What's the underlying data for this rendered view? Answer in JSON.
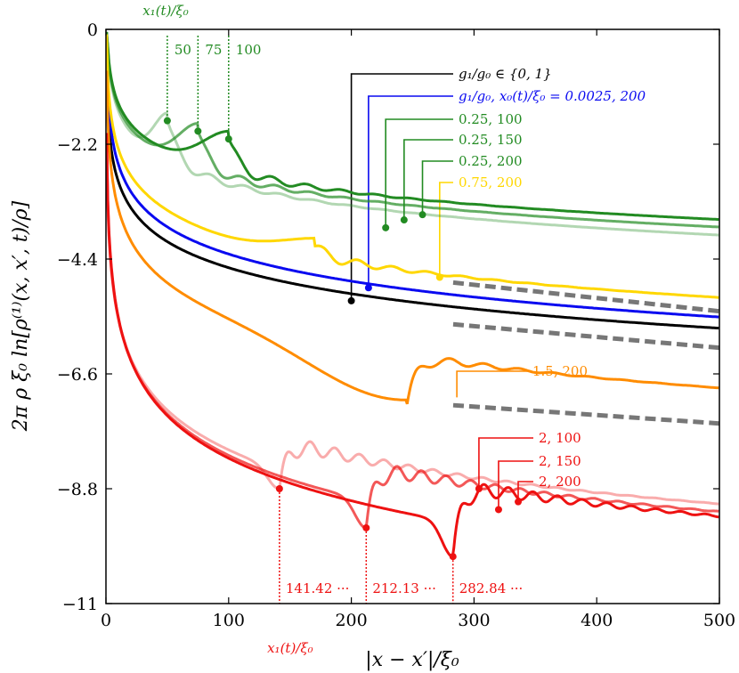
{
  "chart_data": {
    "type": "line",
    "xlabel": "|x − x′|/ξ₀",
    "ylabel": "2π ρ ξ₀ ln[ρ⁽¹⁾(x, x′, t)/ρ]",
    "xlim": [
      0,
      500
    ],
    "ylim": [
      -11,
      0
    ],
    "x_ticks": [
      "0",
      "100",
      "200",
      "300",
      "400",
      "500"
    ],
    "y_ticks": [
      "0",
      "−2.2",
      "−4.4",
      "−6.6",
      "−8.8",
      "−11"
    ],
    "grid": false,
    "top_annotation": {
      "title": "x₁(t)/ξ₀",
      "labels": [
        "50",
        "75",
        "100"
      ],
      "x": [
        50,
        75,
        100
      ],
      "color": "#228B22"
    },
    "bottom_annotation": {
      "title": "x₁(t)/ξ₀",
      "labels": [
        "141.42 ···",
        "212.13 ···",
        "282.84 ···"
      ],
      "x": [
        141.42,
        212.13,
        282.84
      ],
      "color": "#ee1111"
    },
    "series": [
      {
        "label": "g₁/g₀ ∈ {0, 1}",
        "color": "#000000",
        "marker": [
          200,
          -5.2
        ],
        "kind": "smooth",
        "a": -1.25,
        "b": 0.72
      },
      {
        "label": "g₁/g₀, x₀(t)/ξ₀ = 0.0025, 200",
        "color": "#0a0af0",
        "marker": [
          214,
          -4.95
        ],
        "kind": "smooth",
        "a": -0.85,
        "b": 0.75
      },
      {
        "label": "0.25, 100",
        "color": "#228B22",
        "alpha": 0.35,
        "marker": [
          228,
          -3.8
        ],
        "kind": "front",
        "a": -0.15,
        "b": 0.61,
        "x1": 50,
        "y1": -1.75
      },
      {
        "label": "0.25, 150",
        "color": "#228B22",
        "alpha": 0.7,
        "marker": [
          243,
          -3.65
        ],
        "kind": "front",
        "a": -0.12,
        "b": 0.59,
        "x1": 75,
        "y1": -1.95
      },
      {
        "label": "0.25, 200",
        "color": "#228B22",
        "alpha": 1.0,
        "marker": [
          258,
          -3.55
        ],
        "kind": "front",
        "a": -0.1,
        "b": 0.57,
        "x1": 100,
        "y1": -2.1
      },
      {
        "label": "0.75, 200",
        "color": "#ffd700",
        "marker": [
          272,
          -4.75
        ],
        "kind": "front",
        "a": -0.6,
        "b": 0.73,
        "x1": 170,
        "y1": -4.15
      },
      {
        "label": "1.5, 200",
        "color": "#ff8c00",
        "marker": null,
        "kind": "front",
        "a": -1.4,
        "b": 0.88,
        "x1": 245,
        "y1": -7.25
      },
      {
        "label": "2, 100",
        "color": "#ee1111",
        "alpha": 0.35,
        "marker": [
          304,
          -8.8
        ],
        "kind": "dip",
        "a": -3.0,
        "b": 0.98,
        "x1": 141.42,
        "y1": -8.8
      },
      {
        "label": "2, 150",
        "color": "#ee1111",
        "alpha": 0.7,
        "marker": [
          320,
          -9.2
        ],
        "kind": "dip",
        "a": -2.9,
        "b": 1.02,
        "x1": 212.13,
        "y1": -9.55
      },
      {
        "label": "2, 200",
        "color": "#ee1111",
        "alpha": 1.0,
        "marker": [
          336,
          -9.05
        ],
        "kind": "dip",
        "a": -2.8,
        "b": 1.05,
        "x1": 282.84,
        "y1": -10.1
      }
    ],
    "dashed_fits": [
      {
        "color": "#777777",
        "x": [
          283,
          500
        ],
        "y": [
          -4.85,
          -5.4
        ]
      },
      {
        "color": "#777777",
        "x": [
          283,
          500
        ],
        "y": [
          -5.65,
          -6.1
        ]
      },
      {
        "color": "#777777",
        "x": [
          283,
          500
        ],
        "y": [
          -7.2,
          -7.55
        ]
      }
    ]
  }
}
